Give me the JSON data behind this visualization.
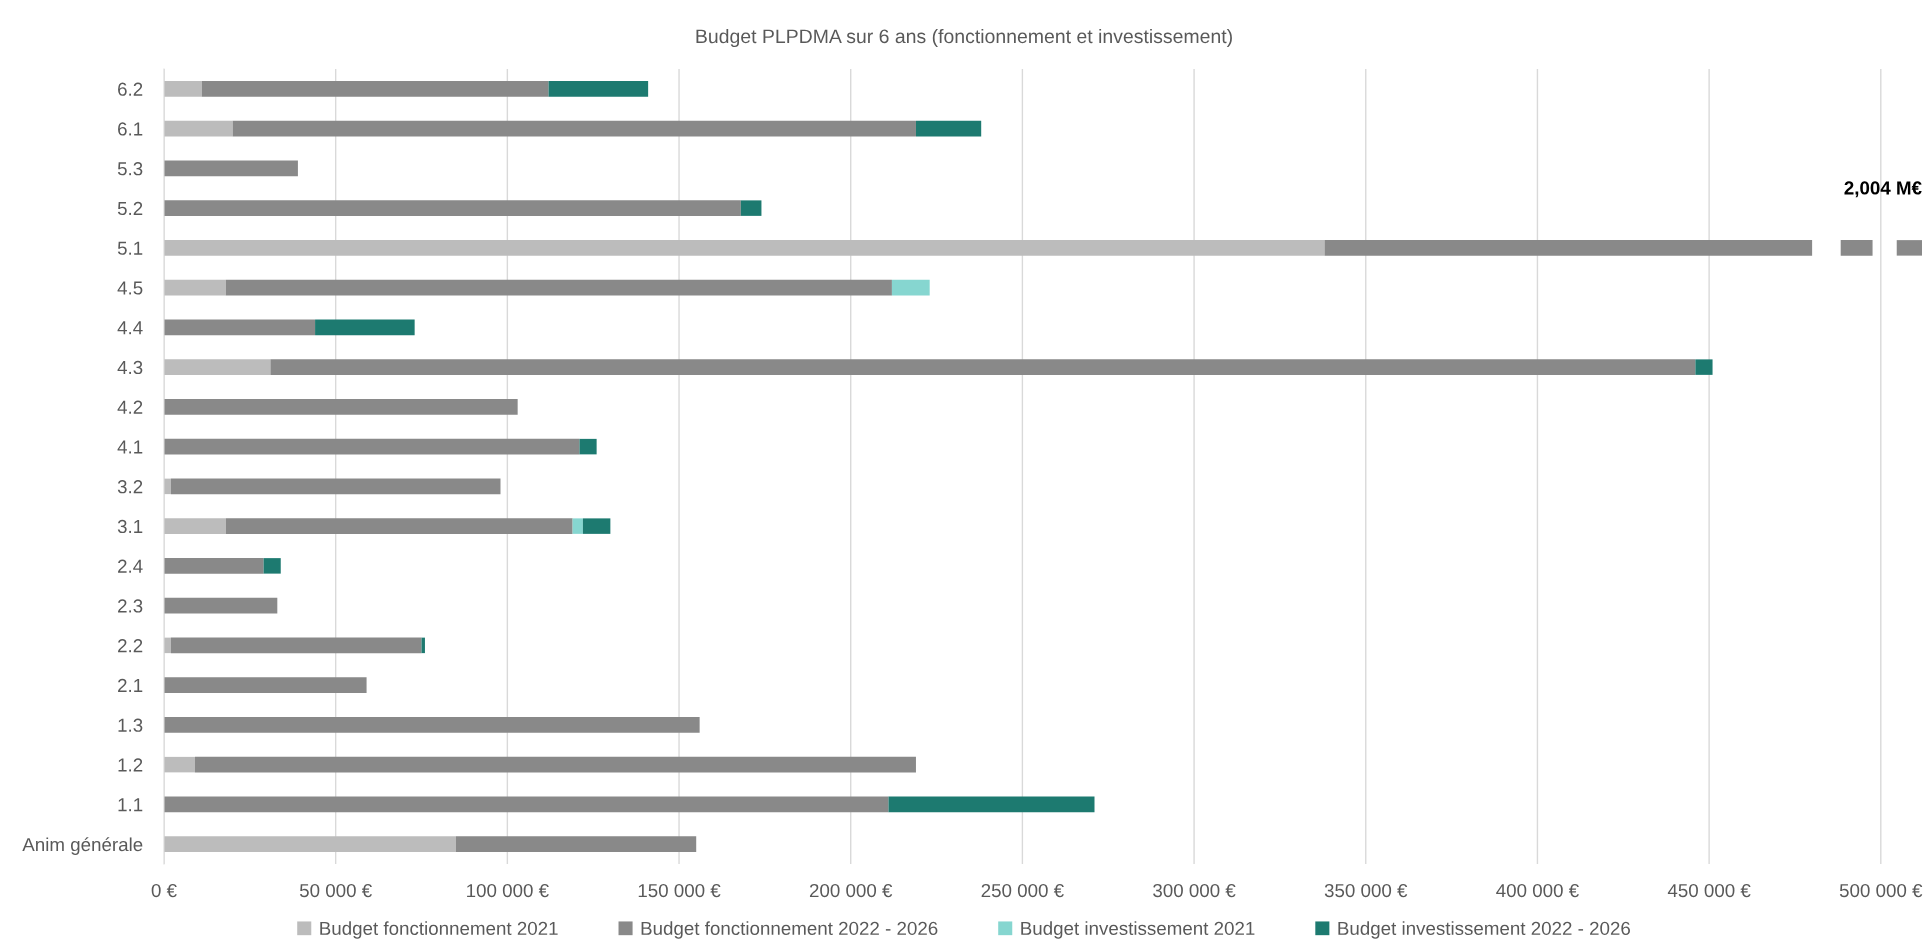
{
  "chart_data": {
    "type": "bar",
    "title": "Budget PLPDMA sur 6 ans (fonctionnement et investissement)",
    "orientation": "horizontal",
    "stacked": true,
    "categories": [
      "6.2",
      "6.1",
      "5.3",
      "5.2",
      "5.1",
      "4.5",
      "4.4",
      "4.3",
      "4.2",
      "4.1",
      "3.2",
      "3.1",
      "2.4",
      "2.3",
      "2.2",
      "2.1",
      "1.3",
      "1.2",
      "1.1",
      "Anim générale"
    ],
    "series": [
      {
        "name": "Budget fonctionnement 2021",
        "color": "#bcbcbc",
        "values": [
          11000,
          20000,
          null,
          null,
          338000,
          18000,
          null,
          31000,
          null,
          null,
          2000,
          18000,
          null,
          null,
          2000,
          null,
          null,
          9000,
          null,
          85000
        ]
      },
      {
        "name": "Budget fonctionnement 2022 - 2026",
        "color": "#898989",
        "values": [
          101000,
          199000,
          39000,
          168000,
          142000,
          194000,
          44000,
          415000,
          103000,
          121000,
          96000,
          101000,
          29000,
          33000,
          73000,
          59000,
          156000,
          210000,
          211000,
          70000
        ]
      },
      {
        "name": "Budget investissement 2021",
        "color": "#86d6d0",
        "values": [
          null,
          null,
          null,
          null,
          null,
          11000,
          null,
          null,
          null,
          null,
          null,
          3000,
          null,
          null,
          null,
          null,
          null,
          null,
          null,
          null
        ]
      },
      {
        "name": "Budget investissement 2022 - 2026",
        "color": "#1d7a70",
        "values": [
          29000,
          19000,
          null,
          6000,
          null,
          null,
          29000,
          5000,
          null,
          5000,
          null,
          8000,
          5000,
          null,
          1000,
          null,
          null,
          null,
          60000,
          null
        ]
      }
    ],
    "xlim": [
      0,
      512000
    ],
    "xticks": [
      {
        "value": 0,
        "label": "0 €"
      },
      {
        "value": 50000,
        "label": "50 000 €"
      },
      {
        "value": 100000,
        "label": "100 000 €"
      },
      {
        "value": 150000,
        "label": "150 000 €"
      },
      {
        "value": 200000,
        "label": "200 000 €"
      },
      {
        "value": 250000,
        "label": "250 000 €"
      },
      {
        "value": 300000,
        "label": "300 000 €"
      },
      {
        "value": 350000,
        "label": "350 000 €"
      },
      {
        "value": 400000,
        "label": "400 000 €"
      },
      {
        "value": 450000,
        "label": "450 000 €"
      },
      {
        "value": 500000,
        "label": "500 000 €"
      }
    ],
    "grid": "x",
    "legend": "bottom",
    "annotations": [
      "2,004 M€"
    ]
  }
}
